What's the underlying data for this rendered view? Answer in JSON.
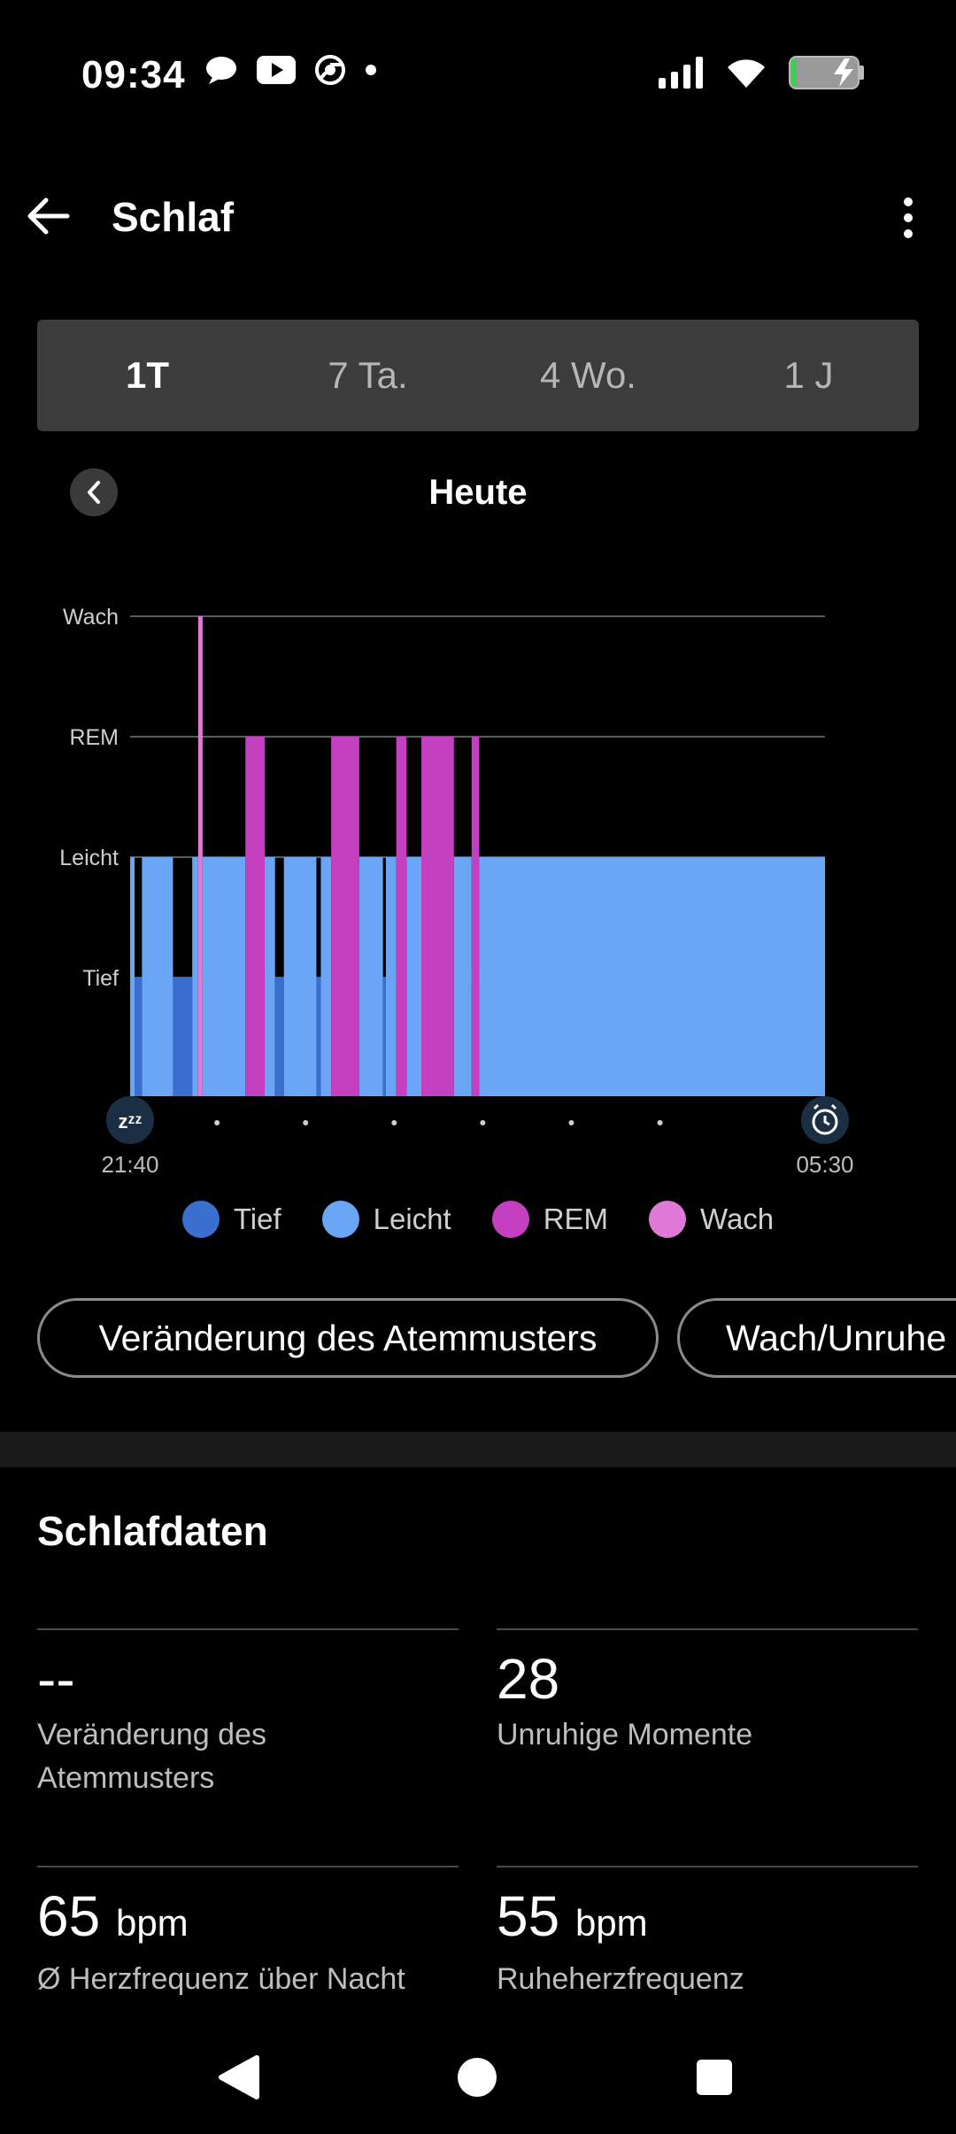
{
  "status_bar": {
    "time": "09:34",
    "left_icons": [
      "chat-bubble-icon",
      "youtube-icon",
      "chrome-icon",
      "dot-icon"
    ],
    "right_icons": [
      "signal-icon",
      "wifi-icon",
      "battery-charging-icon"
    ]
  },
  "header": {
    "title": "Schlaf"
  },
  "tabs": [
    {
      "label": "1T",
      "active": true
    },
    {
      "label": "7 Ta.",
      "active": false
    },
    {
      "label": "4 Wo.",
      "active": false
    },
    {
      "label": "1 J",
      "active": false
    }
  ],
  "day_label": "Heute",
  "chart_data": {
    "type": "bar",
    "y_categories": [
      "Wach",
      "REM",
      "Leicht",
      "Tief"
    ],
    "x_start": "21:40",
    "x_end": "05:30",
    "colors": {
      "Tief": "#3b6fcf",
      "Leicht": "#6aa6f5",
      "REM": "#c440c0",
      "Wach": "#e07ad8"
    },
    "segments": [
      {
        "stage": "Leicht",
        "start": "21:40",
        "end": "21:43"
      },
      {
        "stage": "Tief",
        "start": "21:43",
        "end": "21:48"
      },
      {
        "stage": "Leicht",
        "start": "21:48",
        "end": "22:09"
      },
      {
        "stage": "Tief",
        "start": "22:09",
        "end": "22:22"
      },
      {
        "stage": "Leicht",
        "start": "22:22",
        "end": "22:26"
      },
      {
        "stage": "Wach",
        "start": "22:26",
        "end": "22:29"
      },
      {
        "stage": "Leicht",
        "start": "22:29",
        "end": "22:58"
      },
      {
        "stage": "REM",
        "start": "22:58",
        "end": "23:11"
      },
      {
        "stage": "Leicht",
        "start": "23:11",
        "end": "23:18"
      },
      {
        "stage": "Tief",
        "start": "23:18",
        "end": "23:24"
      },
      {
        "stage": "Leicht",
        "start": "23:24",
        "end": "23:46"
      },
      {
        "stage": "Tief",
        "start": "23:46",
        "end": "23:49"
      },
      {
        "stage": "Leicht",
        "start": "23:49",
        "end": "23:56"
      },
      {
        "stage": "REM",
        "start": "23:56",
        "end": "00:15"
      },
      {
        "stage": "Leicht",
        "start": "00:15",
        "end": "00:31"
      },
      {
        "stage": "Tief",
        "start": "00:31",
        "end": "00:33"
      },
      {
        "stage": "Leicht",
        "start": "00:33",
        "end": "00:40"
      },
      {
        "stage": "REM",
        "start": "00:40",
        "end": "00:47"
      },
      {
        "stage": "Leicht",
        "start": "00:47",
        "end": "00:57"
      },
      {
        "stage": "REM",
        "start": "00:57",
        "end": "01:19"
      },
      {
        "stage": "Leicht",
        "start": "01:19",
        "end": "01:31"
      },
      {
        "stage": "REM",
        "start": "01:31",
        "end": "01:36"
      },
      {
        "stage": "Leicht",
        "start": "01:36",
        "end": "05:30"
      }
    ]
  },
  "legend": [
    {
      "label": "Tief",
      "color": "#3b6fcf"
    },
    {
      "label": "Leicht",
      "color": "#6aa6f5"
    },
    {
      "label": "REM",
      "color": "#c440c0"
    },
    {
      "label": "Wach",
      "color": "#e07ad8"
    }
  ],
  "chips": [
    "Veränderung des Atemmusters",
    "Wach/Unruhe"
  ],
  "section_title": "Schlafdaten",
  "stats": [
    {
      "value": "--",
      "unit": "",
      "label": "Veränderung des Atemmusters"
    },
    {
      "value": "28",
      "unit": "",
      "label": "Unruhige Momente"
    },
    {
      "value": "65",
      "unit": "bpm",
      "label": "Ø Herzfrequenz über Nacht"
    },
    {
      "value": "55",
      "unit": "bpm",
      "label": "Ruheherzfrequenz"
    }
  ]
}
